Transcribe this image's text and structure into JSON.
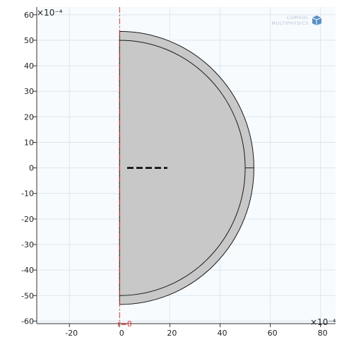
{
  "window": {
    "exponent_y": "×10⁻⁴",
    "exponent_x": "×10⁻⁴",
    "axis_label": "r=0"
  },
  "logo": {
    "line1": "COMSOL",
    "line2": "MULTIPHYSICS"
  },
  "colors": {
    "plot_background": "#f7fbfd",
    "grid": "#dde6ee",
    "shape_fill": "#c8c8c8",
    "shape_stroke": "#1a1a1a",
    "axis_line": "#e03030",
    "logo_text": "#b7c3d8",
    "logo_icon": "#5a8fc7"
  },
  "chart_data": {
    "type": "geometry",
    "x": {
      "ticks": [
        -20,
        0,
        20,
        40,
        60,
        80
      ],
      "tick_labels": [
        "-20",
        "0",
        "20",
        "40",
        "60",
        "80"
      ],
      "range": [
        -33,
        86
      ],
      "multiplier": "×10⁻⁴"
    },
    "y": {
      "ticks": [
        60,
        50,
        40,
        30,
        20,
        10,
        0,
        -10,
        -20,
        -30,
        -40,
        -50,
        -60
      ],
      "tick_labels": [
        "60",
        "50",
        "40",
        "30",
        "20",
        "10",
        "0",
        "-10",
        "-20",
        "-30",
        "-40",
        "-50",
        "-60"
      ],
      "range": [
        -61,
        63
      ],
      "multiplier": "×10⁻⁴"
    },
    "grid": true,
    "outer_radius": 53.5,
    "inner_radius": 50,
    "symmetry_axis_r": 0,
    "dashed_segment": {
      "r_start": 3,
      "r_end": 19,
      "z": 0
    }
  }
}
